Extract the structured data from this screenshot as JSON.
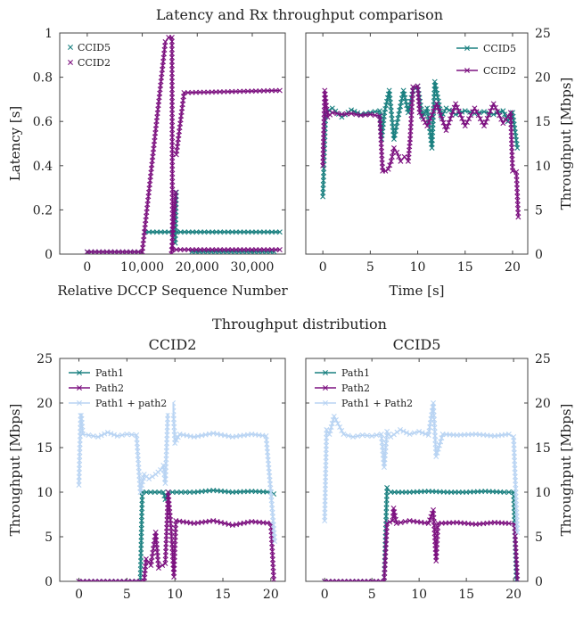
{
  "figure": {
    "top_title": "Latency and Rx throughput comparison",
    "bottom_title": "Throughput distribution"
  },
  "colors": {
    "teal": "#1a8080",
    "purple": "#7d1280",
    "light_blue": "#b9d4f3",
    "frame": "#444444"
  },
  "chart_data": [
    {
      "id": "latency",
      "type": "scatter",
      "xlabel": "Relative DCCP Sequence Number",
      "ylabel": "Latency [s]",
      "xlim": [
        -5000,
        36000
      ],
      "ylim": [
        0,
        1
      ],
      "xticks": [
        0,
        10000,
        20000,
        30000
      ],
      "xtick_labels": [
        "0",
        "10,000",
        "20,000",
        "30,000"
      ],
      "yticks": [
        0,
        0.2,
        0.4,
        0.6,
        0.8,
        1
      ],
      "ytick_labels": [
        "0",
        "0.2",
        "0.4",
        "0.6",
        "0.8",
        "1"
      ],
      "legend_position": "top-left",
      "series": [
        {
          "name": "CCID5",
          "color": "teal",
          "segments": [
            [
              [
                0,
                0.01
              ],
              [
                10000,
                0.01
              ]
            ],
            [
              [
                10500,
                0.1
              ],
              [
                35000,
                0.1
              ]
            ],
            [
              [
                19000,
                0.01
              ],
              [
                34000,
                0.01
              ]
            ],
            [
              [
                16000,
                0.05
              ],
              [
                16200,
                0.28
              ]
            ]
          ]
        },
        {
          "name": "CCID2",
          "color": "purple",
          "segments": [
            [
              [
                0,
                0.01
              ],
              [
                10000,
                0.01
              ]
            ],
            [
              [
                10000,
                0.01
              ],
              [
                14200,
                0.96
              ],
              [
                14800,
                0.98
              ],
              [
                15400,
                0.98
              ],
              [
                15500,
                0.02
              ],
              [
                35000,
                0.02
              ]
            ],
            [
              [
                15300,
                0.0
              ],
              [
                16100,
                0.28
              ]
            ],
            [
              [
                16200,
                0.45
              ],
              [
                17600,
                0.73
              ],
              [
                35000,
                0.74
              ]
            ]
          ]
        }
      ]
    },
    {
      "id": "rx-throughput",
      "type": "line",
      "xlabel": "Time [s]",
      "ylabel": "Throughput [Mbps]",
      "xlim": [
        -1.8,
        21.6
      ],
      "ylim": [
        0,
        25
      ],
      "xticks": [
        0,
        5,
        10,
        15,
        20
      ],
      "xtick_labels": [
        "0",
        "5",
        "10",
        "15",
        "20"
      ],
      "yticks": [
        0,
        5,
        10,
        15,
        20,
        25
      ],
      "ytick_labels": [
        "0",
        "5",
        "10",
        "15",
        "20",
        "25"
      ],
      "legend_position": "top-right",
      "series": [
        {
          "name": "CCID5",
          "color": "teal",
          "points": [
            [
              0,
              6.5
            ],
            [
              0.3,
              16.0
            ],
            [
              1,
              16.5
            ],
            [
              2,
              15.5
            ],
            [
              3,
              16.3
            ],
            [
              4,
              15.8
            ],
            [
              5,
              16.0
            ],
            [
              6,
              16.2
            ],
            [
              6.2,
              13.0
            ],
            [
              6.5,
              16.0
            ],
            [
              7,
              18.5
            ],
            [
              7.5,
              13.0
            ],
            [
              8,
              15.8
            ],
            [
              8.5,
              18.5
            ],
            [
              9,
              16.0
            ],
            [
              9.5,
              18.5
            ],
            [
              10,
              19.0
            ],
            [
              10.5,
              15.5
            ],
            [
              11,
              16.5
            ],
            [
              11.5,
              12.0
            ],
            [
              11.8,
              19.5
            ],
            [
              12.5,
              15.5
            ],
            [
              13,
              16.5
            ],
            [
              14,
              15.8
            ],
            [
              15,
              16.2
            ],
            [
              16,
              15.9
            ],
            [
              17,
              16.1
            ],
            [
              18,
              15.8
            ],
            [
              19,
              16.2
            ],
            [
              19.5,
              15.0
            ],
            [
              20.0,
              16.0
            ],
            [
              20.5,
              12.0
            ]
          ]
        },
        {
          "name": "CCID2",
          "color": "purple",
          "points": [
            [
              0,
              10.0
            ],
            [
              0.2,
              18.5
            ],
            [
              0.5,
              15.5
            ],
            [
              1,
              16.0
            ],
            [
              2,
              15.8
            ],
            [
              3,
              15.9
            ],
            [
              4,
              15.7
            ],
            [
              5,
              15.8
            ],
            [
              6,
              15.6
            ],
            [
              6.3,
              9.4
            ],
            [
              6.6,
              9.4
            ],
            [
              6.9,
              9.6
            ],
            [
              7.2,
              10.5
            ],
            [
              7.5,
              12.0
            ],
            [
              7.8,
              11.5
            ],
            [
              8.2,
              10.5
            ],
            [
              8.6,
              11.0
            ],
            [
              9.0,
              10.5
            ],
            [
              9.2,
              13.0
            ],
            [
              9.5,
              18.9
            ],
            [
              10,
              19.0
            ],
            [
              10.2,
              16.0
            ],
            [
              11,
              14.5
            ],
            [
              12,
              17.0
            ],
            [
              13,
              14.0
            ],
            [
              14,
              17.0
            ],
            [
              15,
              14.5
            ],
            [
              16,
              16.5
            ],
            [
              17,
              14.5
            ],
            [
              18,
              17.0
            ],
            [
              19,
              14.8
            ],
            [
              19.8,
              16.0
            ],
            [
              20.0,
              9.4
            ],
            [
              20.4,
              9.3
            ],
            [
              20.6,
              4.2
            ]
          ]
        }
      ]
    },
    {
      "id": "dist-ccid2",
      "type": "line",
      "title": "CCID2",
      "xlabel": "",
      "ylabel": "Throughput [Mbps]",
      "xlim": [
        -2,
        21.5
      ],
      "ylim": [
        0,
        25
      ],
      "xticks": [
        0,
        5,
        10,
        15,
        20
      ],
      "xtick_labels": [
        "0",
        "5",
        "10",
        "15",
        "20"
      ],
      "yticks": [
        0,
        5,
        10,
        15,
        20,
        25
      ],
      "ytick_labels": [
        "0",
        "5",
        "10",
        "15",
        "20",
        "25"
      ],
      "legend_position": "top-left",
      "series": [
        {
          "name": "Path1",
          "color": "teal",
          "points": [
            [
              0,
              0
            ],
            [
              6.4,
              0
            ],
            [
              6.6,
              10.0
            ],
            [
              8.8,
              10.0
            ],
            [
              9.0,
              9.2
            ],
            [
              9.3,
              10.0
            ],
            [
              12,
              10.0
            ],
            [
              14,
              10.2
            ],
            [
              16,
              10.0
            ],
            [
              18,
              10.1
            ],
            [
              20,
              10.0
            ],
            [
              20.3,
              9.8
            ]
          ]
        },
        {
          "name": "Path2",
          "color": "purple",
          "points": [
            [
              0,
              0
            ],
            [
              6.8,
              0
            ],
            [
              7.0,
              2.5
            ],
            [
              7.5,
              1.8
            ],
            [
              8.0,
              5.5
            ],
            [
              8.3,
              1.5
            ],
            [
              8.7,
              1.8
            ],
            [
              9.0,
              2.0
            ],
            [
              9.3,
              10.0
            ],
            [
              9.6,
              6.0
            ],
            [
              9.9,
              0.5
            ],
            [
              10.1,
              6.8
            ],
            [
              12,
              6.5
            ],
            [
              14,
              6.8
            ],
            [
              16,
              6.3
            ],
            [
              18,
              6.7
            ],
            [
              20,
              6.5
            ],
            [
              20.3,
              0.2
            ]
          ]
        },
        {
          "name": "Path1 + path2",
          "color": "light_blue",
          "points": [
            [
              0,
              10.8
            ],
            [
              0.2,
              19.5
            ],
            [
              0.4,
              16.5
            ],
            [
              1,
              16.4
            ],
            [
              2,
              16.2
            ],
            [
              3,
              16.7
            ],
            [
              4,
              16.3
            ],
            [
              5,
              16.5
            ],
            [
              6,
              16.4
            ],
            [
              6.4,
              10.0
            ],
            [
              6.8,
              12.0
            ],
            [
              7.3,
              11.5
            ],
            [
              8.0,
              12.0
            ],
            [
              8.5,
              12.5
            ],
            [
              8.8,
              13.0
            ],
            [
              9.0,
              11.0
            ],
            [
              9.3,
              20.0
            ],
            [
              9.8,
              20.0
            ],
            [
              10.0,
              15.5
            ],
            [
              10.5,
              16.5
            ],
            [
              12,
              16.2
            ],
            [
              14,
              16.6
            ],
            [
              16,
              16.2
            ],
            [
              18,
              16.5
            ],
            [
              19.5,
              16.3
            ],
            [
              20.0,
              10.0
            ],
            [
              20.4,
              4.5
            ]
          ]
        }
      ]
    },
    {
      "id": "dist-ccid5",
      "type": "line",
      "title": "CCID5",
      "xlabel": "",
      "ylabel": "Throughput [Mbps]",
      "xlim": [
        -2,
        21.5
      ],
      "ylim": [
        0,
        25
      ],
      "xticks": [
        0,
        5,
        10,
        15,
        20
      ],
      "xtick_labels": [
        "0",
        "5",
        "10",
        "15",
        "20"
      ],
      "yticks": [
        0,
        5,
        10,
        15,
        20,
        25
      ],
      "ytick_labels": [
        "0",
        "5",
        "10",
        "15",
        "20",
        "25"
      ],
      "legend_position": "top-left",
      "series": [
        {
          "name": "Path1",
          "color": "teal",
          "points": [
            [
              0,
              0
            ],
            [
              6.3,
              0
            ],
            [
              6.6,
              10.5
            ],
            [
              7.0,
              10.0
            ],
            [
              9,
              10.0
            ],
            [
              11,
              10.1
            ],
            [
              13,
              10.0
            ],
            [
              15,
              10.0
            ],
            [
              17,
              10.1
            ],
            [
              19,
              10.0
            ],
            [
              20,
              10.0
            ],
            [
              20.3,
              0.2
            ]
          ]
        },
        {
          "name": "Path2",
          "color": "purple",
          "points": [
            [
              0,
              0
            ],
            [
              6.3,
              0
            ],
            [
              6.6,
              6.5
            ],
            [
              7.2,
              6.8
            ],
            [
              7.3,
              8.2
            ],
            [
              7.6,
              6.5
            ],
            [
              9,
              6.8
            ],
            [
              11,
              6.5
            ],
            [
              11.5,
              8.0
            ],
            [
              11.8,
              2.3
            ],
            [
              12.0,
              6.5
            ],
            [
              14,
              6.6
            ],
            [
              16,
              6.4
            ],
            [
              18,
              6.6
            ],
            [
              19.5,
              6.5
            ],
            [
              20.1,
              6.4
            ],
            [
              20.4,
              0.2
            ]
          ]
        },
        {
          "name": "Path1 + Path2",
          "color": "light_blue",
          "points": [
            [
              0,
              6.8
            ],
            [
              0.2,
              17.0
            ],
            [
              0.5,
              16.5
            ],
            [
              1,
              18.5
            ],
            [
              2,
              16.5
            ],
            [
              3,
              16.2
            ],
            [
              4,
              16.4
            ],
            [
              5,
              16.3
            ],
            [
              6,
              16.5
            ],
            [
              6.3,
              12.8
            ],
            [
              6.6,
              16.8
            ],
            [
              7.0,
              16.2
            ],
            [
              8,
              17.0
            ],
            [
              9,
              16.5
            ],
            [
              10,
              16.8
            ],
            [
              11,
              16.4
            ],
            [
              11.5,
              20.0
            ],
            [
              11.8,
              14.0
            ],
            [
              12.5,
              16.5
            ],
            [
              14,
              16.4
            ],
            [
              16,
              16.5
            ],
            [
              18,
              16.3
            ],
            [
              19.5,
              16.5
            ],
            [
              20.0,
              16.2
            ],
            [
              20.4,
              5.5
            ]
          ]
        }
      ]
    }
  ]
}
